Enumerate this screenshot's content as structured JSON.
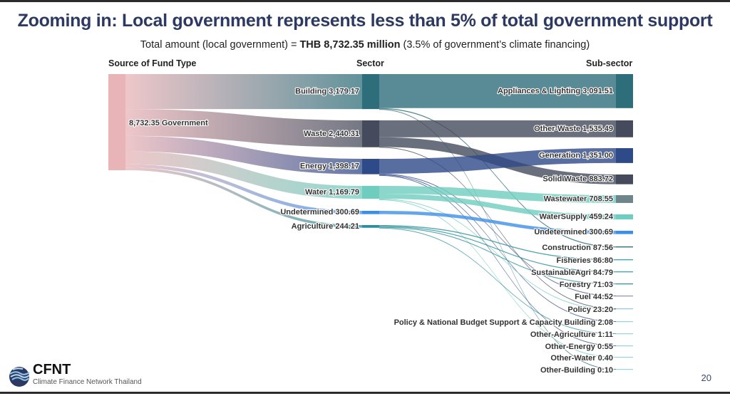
{
  "slide": {
    "title": "Zooming in: Local government represents less than 5% of total government support",
    "subtitle_prefix": "Total amount (local government) = ",
    "subtitle_bold": "THB 8,732.35 million",
    "subtitle_suffix": " (3.5% of government’s climate financing)",
    "page_number": "20"
  },
  "logo": {
    "name": "CFNT",
    "tagline": "Climate Finance Network Thailand",
    "icon": "globe-waves-icon"
  },
  "chart_data": {
    "type": "sankey",
    "units": "THB million",
    "column_headers": [
      "Source of Fund Type",
      "Sector",
      "Sub-sector"
    ],
    "source": {
      "name": "Government",
      "value": 8732.35,
      "label": "8,732.35 Government",
      "color": "#e8b4b8"
    },
    "sectors": [
      {
        "name": "Building",
        "value": 3179.17,
        "label": "Building 3,179.17",
        "color": "#2e6e7a"
      },
      {
        "name": "Waste",
        "value": 2440.31,
        "label": "Waste 2,440.31",
        "color": "#454b5c"
      },
      {
        "name": "Energy",
        "value": 1398.17,
        "label": "Energy 1,398.17",
        "color": "#2f4a88"
      },
      {
        "name": "Water",
        "value": 1169.79,
        "label": "Water 1,169.79",
        "color": "#6fcdbf"
      },
      {
        "name": "Undetermined",
        "value": 300.69,
        "label": "Undetermined 300.69",
        "color": "#3d8fe6"
      },
      {
        "name": "Agriculture",
        "value": 244.21,
        "label": "Agriculture 244.21",
        "color": "#2a8f9a"
      }
    ],
    "subsectors": [
      {
        "name": "Appliances & Lighting",
        "value": 3091.51,
        "label": "Appliances & Lighting 3,091.51",
        "color": "#2e6e7a"
      },
      {
        "name": "Other-Waste",
        "value": 1535.49,
        "label": "Other-Waste 1,535.49",
        "color": "#454b5c"
      },
      {
        "name": "Generation",
        "value": 1351.0,
        "label": "Generation 1,351.00",
        "color": "#2f4a88"
      },
      {
        "name": "Solid Waste",
        "value": 883.72,
        "label": "Solid Waste 883.72",
        "color": "#454b5c"
      },
      {
        "name": "Wastewater",
        "value": 708.55,
        "label": "Wastewater 708.55",
        "color": "#6e858a"
      },
      {
        "name": "WaterSupply",
        "value": 459.24,
        "label": "WaterSupply 459.24",
        "color": "#6fcdbf"
      },
      {
        "name": "Undetermined",
        "value": 300.69,
        "label": "Undetermined 300.69",
        "color": "#3d8fe6"
      },
      {
        "name": "Construction",
        "value": 87.56,
        "label": "Construction 87:56",
        "color": "#2e6e7a"
      },
      {
        "name": "Fisheries",
        "value": 86.8,
        "label": "Fisheries 86:80",
        "color": "#3aa5b5"
      },
      {
        "name": "SustainableAgri",
        "value": 84.79,
        "label": "SustainableAgri 84:79",
        "color": "#3aa5b5"
      },
      {
        "name": "Forestry",
        "value": 71.03,
        "label": "Forestry 71:03",
        "color": "#2a8f9a"
      },
      {
        "name": "Fuel",
        "value": 44.52,
        "label": "Fuel 44:52",
        "color": "#8c8fc4"
      },
      {
        "name": "Policy",
        "value": 23.2,
        "label": "Policy 23:20",
        "color": "#8fc6ea"
      },
      {
        "name": "Policy & National Budget Support & Capacity Building",
        "value": 2.08,
        "label": "Policy & National Budget Support & Capacity Building 2.08",
        "color": "#9ccfe0"
      },
      {
        "name": "Other-Agriculture",
        "value": 1.11,
        "label": "Other-Agriculture 1:11",
        "color": "#9ccfe0"
      },
      {
        "name": "Other-Energy",
        "value": 0.55,
        "label": "Other-Energy 0:55",
        "color": "#9ccfe0"
      },
      {
        "name": "Other-Water",
        "value": 0.4,
        "label": "Other-Water 0.40",
        "color": "#9ccfe0"
      },
      {
        "name": "Other-Building",
        "value": 0.1,
        "label": "Other-Building 0:10",
        "color": "#9ccfe0"
      }
    ],
    "links_source_to_sector": [
      {
        "from": "Government",
        "to": "Building",
        "value": 3179.17
      },
      {
        "from": "Government",
        "to": "Waste",
        "value": 2440.31
      },
      {
        "from": "Government",
        "to": "Energy",
        "value": 1398.17
      },
      {
        "from": "Government",
        "to": "Water",
        "value": 1169.79
      },
      {
        "from": "Government",
        "to": "Undetermined",
        "value": 300.69
      },
      {
        "from": "Government",
        "to": "Agriculture",
        "value": 244.21
      }
    ],
    "links_sector_to_subsector": [
      {
        "from": "Building",
        "to": "Appliances & Lighting",
        "value": 3091.51
      },
      {
        "from": "Building",
        "to": "Construction",
        "value": 87.56
      },
      {
        "from": "Building",
        "to": "Other-Building",
        "value": 0.1
      },
      {
        "from": "Waste",
        "to": "Other-Waste",
        "value": 1535.49
      },
      {
        "from": "Waste",
        "to": "Solid Waste",
        "value": 883.72
      },
      {
        "from": "Waste",
        "to": "Policy",
        "value": 21.1
      },
      {
        "from": "Energy",
        "to": "Generation",
        "value": 1351.0
      },
      {
        "from": "Energy",
        "to": "Fuel",
        "value": 44.52
      },
      {
        "from": "Energy",
        "to": "Policy & National Budget Support & Capacity Building",
        "value": 2.08
      },
      {
        "from": "Energy",
        "to": "Other-Energy",
        "value": 0.55
      },
      {
        "from": "Water",
        "to": "Wastewater",
        "value": 708.55
      },
      {
        "from": "Water",
        "to": "WaterSupply",
        "value": 459.24
      },
      {
        "from": "Water",
        "to": "Policy",
        "value": 2.1
      },
      {
        "from": "Water",
        "to": "Other-Water",
        "value": 0.4
      },
      {
        "from": "Undetermined",
        "to": "Undetermined",
        "value": 300.69
      },
      {
        "from": "Agriculture",
        "to": "Fisheries",
        "value": 86.8
      },
      {
        "from": "Agriculture",
        "to": "SustainableAgri",
        "value": 84.79
      },
      {
        "from": "Agriculture",
        "to": "Forestry",
        "value": 71.03
      },
      {
        "from": "Agriculture",
        "to": "Other-Agriculture",
        "value": 1.11
      }
    ]
  }
}
